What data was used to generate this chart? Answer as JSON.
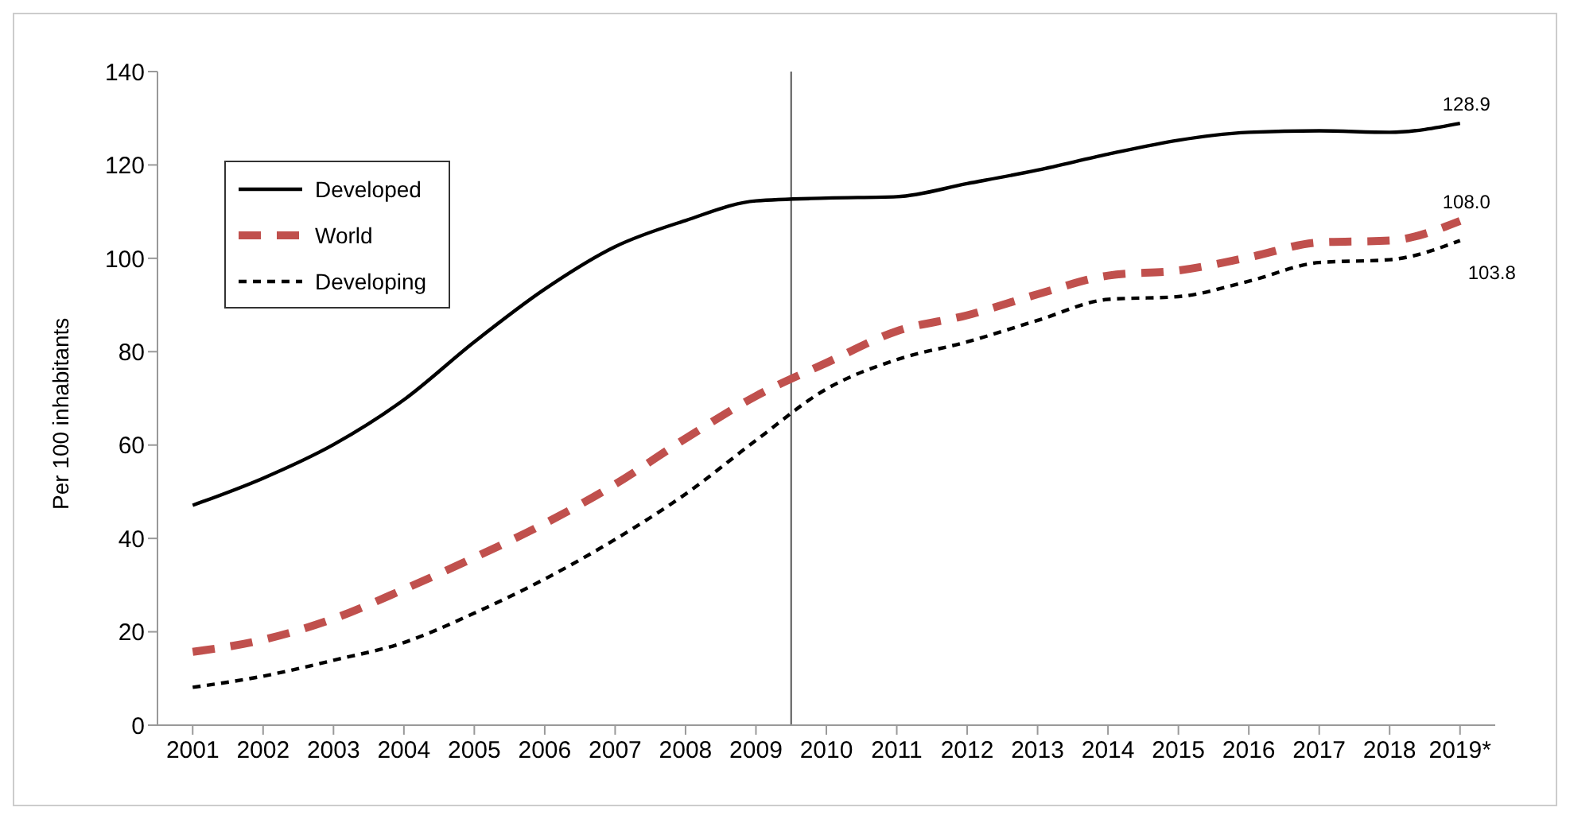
{
  "chart_data": {
    "type": "line",
    "ylabel": "Per 100 inhabitants",
    "x": [
      2001,
      2002,
      2003,
      2004,
      2005,
      2006,
      2007,
      2008,
      2009,
      2010,
      2011,
      2012,
      2013,
      2014,
      2015,
      2016,
      2017,
      2018,
      2019
    ],
    "xlim": [
      2000.5,
      2019.5
    ],
    "xticks": [
      2001,
      2002,
      2003,
      2004,
      2005,
      2006,
      2007,
      2008,
      2009,
      2010,
      2011,
      2012,
      2013,
      2014,
      2015,
      2016,
      2017,
      2018,
      {
        "value": 2019,
        "label": "2019*"
      }
    ],
    "ylim": [
      0,
      140
    ],
    "yticks": [
      0,
      20,
      40,
      60,
      80,
      100,
      120,
      140
    ],
    "series": [
      {
        "name": "Developed",
        "color": "#000000",
        "line_style": "solid",
        "values": [
          47.1,
          52.9,
          60.1,
          69.7,
          82.1,
          93.4,
          102.5,
          108.1,
          112.3,
          112.9,
          113.2,
          116,
          118.9,
          122.3,
          125.3,
          127,
          127.3,
          127,
          128.9
        ],
        "value_labels": [
          null,
          null,
          null,
          null,
          null,
          null,
          null,
          null,
          null,
          null,
          null,
          null,
          null,
          null,
          null,
          null,
          null,
          null,
          "128.9"
        ]
      },
      {
        "name": "World",
        "color": "#c0504d",
        "line_style": "dashed",
        "values": [
          15.7,
          18.3,
          22.8,
          29.1,
          35.9,
          43.2,
          51.6,
          61.4,
          70.5,
          77.6,
          84.4,
          87.8,
          92.3,
          96.3,
          97.4,
          100.2,
          103.4,
          103.8,
          108.0
        ],
        "value_labels": [
          null,
          null,
          null,
          null,
          null,
          null,
          null,
          null,
          null,
          null,
          null,
          null,
          null,
          null,
          null,
          null,
          null,
          null,
          "108.0"
        ]
      },
      {
        "name": "Developing",
        "color": "#000000",
        "line_style": "dashed",
        "values": [
          8.1,
          10.5,
          13.9,
          17.7,
          24,
          31.3,
          39.8,
          49.5,
          61,
          72,
          78.3,
          82.1,
          86.7,
          91.2,
          91.8,
          95.1,
          99.1,
          99.7,
          103.8
        ],
        "value_labels": [
          null,
          null,
          null,
          null,
          null,
          null,
          null,
          null,
          null,
          null,
          null,
          null,
          null,
          null,
          null,
          null,
          null,
          null,
          "103.8"
        ]
      }
    ],
    "ref_lines": [
      {
        "axis": "x",
        "value": 2009.5,
        "color": "#555555"
      }
    ],
    "grid": false,
    "legend": "top left",
    "marker": "none"
  }
}
